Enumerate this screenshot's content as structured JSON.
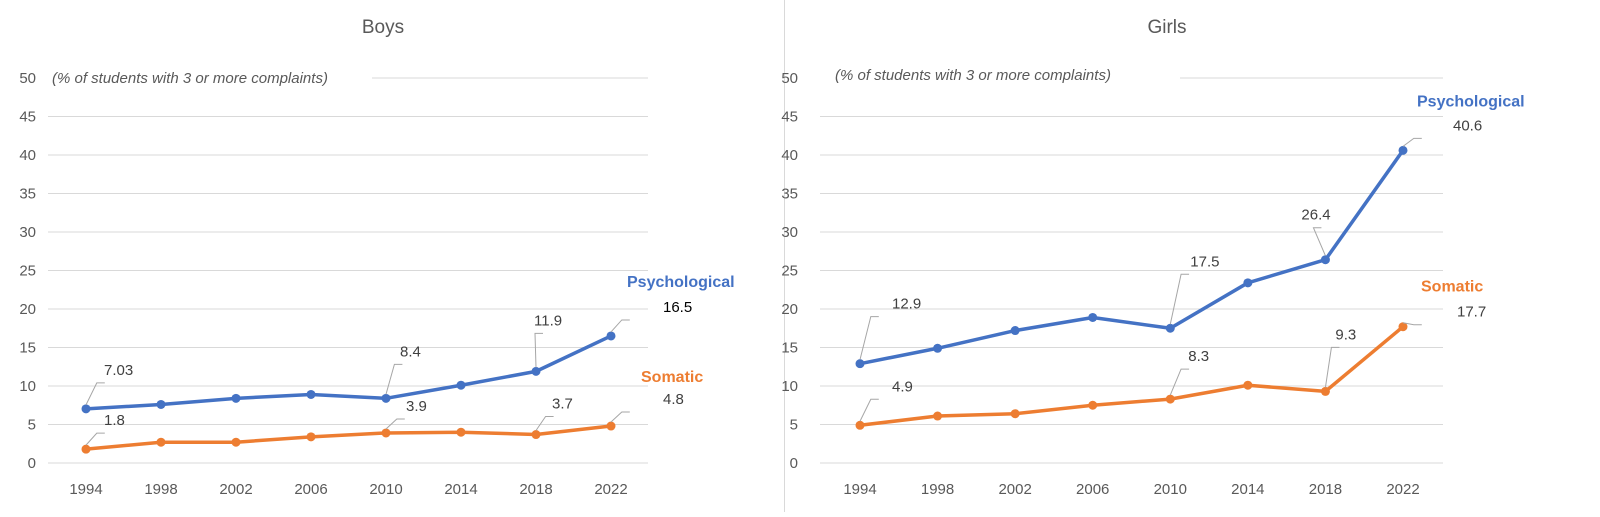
{
  "chart_data": [
    {
      "type": "line",
      "title": "Boys",
      "subtitle": "(% of students with 3 or more complaints)",
      "categories": [
        "1994",
        "1998",
        "2002",
        "2006",
        "2010",
        "2014",
        "2018",
        "2022"
      ],
      "ylim": [
        0,
        50
      ],
      "yticks": [
        0,
        5,
        10,
        15,
        20,
        25,
        30,
        35,
        40,
        45,
        50
      ],
      "grid": true,
      "series": [
        {
          "name": "Psychological",
          "color": "#4472C4",
          "values": [
            7.03,
            7.6,
            8.4,
            8.9,
            8.4,
            10.1,
            11.9,
            16.5
          ],
          "labels": [
            "7.03",
            "",
            "",
            "",
            "8.4",
            "",
            "11.9",
            "16.5"
          ]
        },
        {
          "name": "Somatic",
          "color": "#ED7D31",
          "values": [
            1.8,
            2.7,
            2.7,
            3.4,
            3.9,
            4.0,
            3.7,
            4.8
          ],
          "labels": [
            "1.8",
            "",
            "",
            "",
            "3.9",
            "",
            "3.7",
            "4.8"
          ]
        }
      ]
    },
    {
      "type": "line",
      "title": "Girls",
      "subtitle": "(% of students with 3 or more complaints)",
      "categories": [
        "1994",
        "1998",
        "2002",
        "2006",
        "2010",
        "2014",
        "2018",
        "2022"
      ],
      "ylim": [
        0,
        50
      ],
      "yticks": [
        0,
        5,
        10,
        15,
        20,
        25,
        30,
        35,
        40,
        45,
        50
      ],
      "grid": true,
      "series": [
        {
          "name": "Psychological",
          "color": "#4472C4",
          "values": [
            12.9,
            14.9,
            17.2,
            18.9,
            17.5,
            23.4,
            26.4,
            40.6
          ],
          "labels": [
            "12.9",
            "",
            "",
            "",
            "17.5",
            "",
            "26.4",
            "40.6"
          ]
        },
        {
          "name": "Somatic",
          "color": "#ED7D31",
          "values": [
            4.9,
            6.1,
            6.4,
            7.5,
            8.3,
            10.1,
            9.3,
            17.7
          ],
          "labels": [
            "4.9",
            "",
            "",
            "",
            "8.3",
            "",
            "9.3",
            "17.7"
          ]
        }
      ]
    }
  ]
}
